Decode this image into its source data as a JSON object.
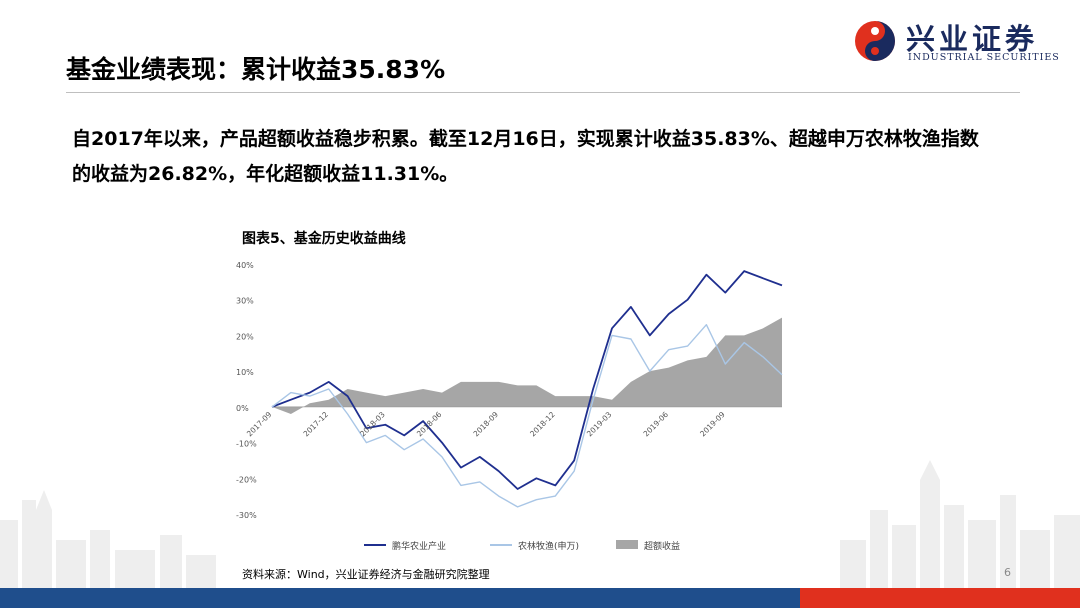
{
  "logo": {
    "name_cn": "兴业证券",
    "name_en": "INDUSTRIAL SECURITIES",
    "colors": {
      "red": "#e0301e",
      "blue": "#1a2a5e"
    }
  },
  "slide": {
    "title": "基金业绩表现：累计收益35.83%",
    "body": "自2017年以来，产品超额收益稳步积累。截至12月16日，实现累计收益35.83%、超越申万农林牧渔指数的收益为26.82%，年化超额收益11.31%。",
    "figure_title": "图表5、基金历史收益曲线",
    "source": "资料来源：Wind，兴业证券经济与金融研究院整理",
    "page_number": "6"
  },
  "theme": {
    "bar_blue": "#1f4e8c",
    "bar_red": "#e0301e"
  },
  "chart_data": {
    "type": "line",
    "ylim": [
      -30,
      40
    ],
    "yticks": [
      40,
      30,
      20,
      10,
      0,
      -10,
      -20,
      -30
    ],
    "ytick_labels": [
      "40%",
      "30%",
      "20%",
      "10%",
      "0%",
      "-10%",
      "-20%",
      "-30%"
    ],
    "x_range": [
      "2017-09",
      "2019-12"
    ],
    "xtick_labels": [
      "2017-09",
      "2017-12",
      "2018-03",
      "2018-06",
      "2018-09",
      "2018-12",
      "2019-03",
      "2019-06",
      "2019-09"
    ],
    "legend_position": "bottom",
    "grid": false,
    "series": [
      {
        "name": "鹏华农业产业",
        "style": "line",
        "color": "#1f2f8f",
        "points": [
          [
            "2017-09",
            0
          ],
          [
            "2017-10",
            2
          ],
          [
            "2017-11",
            4
          ],
          [
            "2017-12",
            7
          ],
          [
            "2018-01",
            3
          ],
          [
            "2018-02",
            -6
          ],
          [
            "2018-03",
            -5
          ],
          [
            "2018-04",
            -8
          ],
          [
            "2018-05",
            -4
          ],
          [
            "2018-06",
            -10
          ],
          [
            "2018-07",
            -17
          ],
          [
            "2018-08",
            -14
          ],
          [
            "2018-09",
            -18
          ],
          [
            "2018-10",
            -23
          ],
          [
            "2018-11",
            -20
          ],
          [
            "2018-12",
            -22
          ],
          [
            "2019-01",
            -15
          ],
          [
            "2019-02",
            5
          ],
          [
            "2019-03",
            22
          ],
          [
            "2019-04",
            28
          ],
          [
            "2019-05",
            20
          ],
          [
            "2019-06",
            26
          ],
          [
            "2019-07",
            30
          ],
          [
            "2019-08",
            37
          ],
          [
            "2019-09",
            32
          ],
          [
            "2019-10",
            38
          ],
          [
            "2019-11",
            36
          ],
          [
            "2019-12",
            34
          ]
        ]
      },
      {
        "name": "农林牧渔(申万)",
        "style": "line",
        "color": "#a9c6e6",
        "points": [
          [
            "2017-09",
            0
          ],
          [
            "2017-10",
            4
          ],
          [
            "2017-11",
            3
          ],
          [
            "2017-12",
            5
          ],
          [
            "2018-01",
            -2
          ],
          [
            "2018-02",
            -10
          ],
          [
            "2018-03",
            -8
          ],
          [
            "2018-04",
            -12
          ],
          [
            "2018-05",
            -9
          ],
          [
            "2018-06",
            -14
          ],
          [
            "2018-07",
            -22
          ],
          [
            "2018-08",
            -21
          ],
          [
            "2018-09",
            -25
          ],
          [
            "2018-10",
            -28
          ],
          [
            "2018-11",
            -26
          ],
          [
            "2018-12",
            -25
          ],
          [
            "2019-01",
            -18
          ],
          [
            "2019-02",
            2
          ],
          [
            "2019-03",
            20
          ],
          [
            "2019-04",
            19
          ],
          [
            "2019-05",
            10
          ],
          [
            "2019-06",
            16
          ],
          [
            "2019-07",
            17
          ],
          [
            "2019-08",
            23
          ],
          [
            "2019-09",
            12
          ],
          [
            "2019-10",
            18
          ],
          [
            "2019-11",
            14
          ],
          [
            "2019-12",
            9
          ]
        ]
      },
      {
        "name": "超额收益",
        "style": "area",
        "color": "#a6a6a6",
        "points": [
          [
            "2017-09",
            0
          ],
          [
            "2017-10",
            -2
          ],
          [
            "2017-11",
            1
          ],
          [
            "2017-12",
            2
          ],
          [
            "2018-01",
            5
          ],
          [
            "2018-02",
            4
          ],
          [
            "2018-03",
            3
          ],
          [
            "2018-04",
            4
          ],
          [
            "2018-05",
            5
          ],
          [
            "2018-06",
            4
          ],
          [
            "2018-07",
            7
          ],
          [
            "2018-08",
            7
          ],
          [
            "2018-09",
            7
          ],
          [
            "2018-10",
            6
          ],
          [
            "2018-11",
            6
          ],
          [
            "2018-12",
            3
          ],
          [
            "2019-01",
            3
          ],
          [
            "2019-02",
            3
          ],
          [
            "2019-03",
            2
          ],
          [
            "2019-04",
            7
          ],
          [
            "2019-05",
            10
          ],
          [
            "2019-06",
            11
          ],
          [
            "2019-07",
            13
          ],
          [
            "2019-08",
            14
          ],
          [
            "2019-09",
            20
          ],
          [
            "2019-10",
            20
          ],
          [
            "2019-11",
            22
          ],
          [
            "2019-12",
            25
          ]
        ]
      }
    ]
  }
}
